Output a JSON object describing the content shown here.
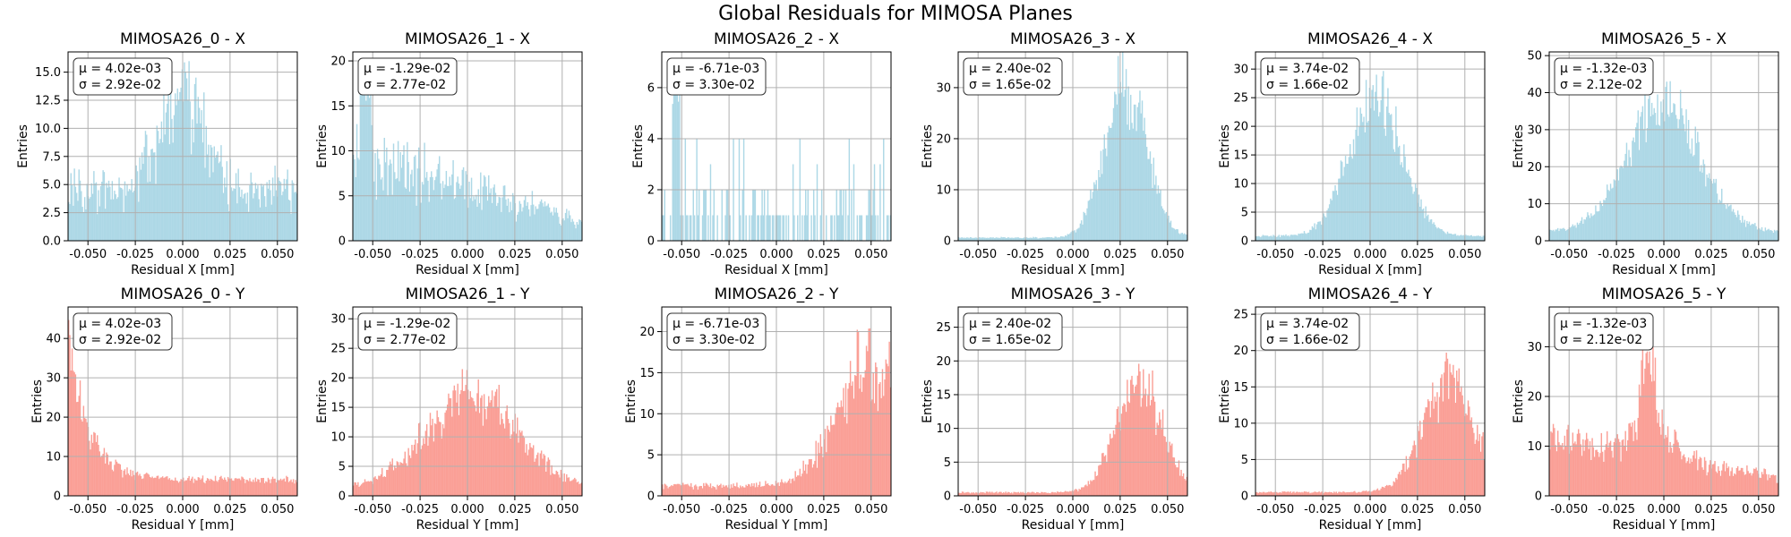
{
  "figure_title": "Global Residuals for MIMOSA Planes",
  "colors": {
    "x_bars": "#add8e6",
    "y_bars": "#fa9f96",
    "grid": "#b0b0b0",
    "axes": "#000000"
  },
  "chart_data": [
    {
      "type": "bar",
      "title": "MIMOSA26_0 - X",
      "xlabel": "Residual X [mm]",
      "ylabel": "Entries",
      "xlim": [
        -0.0605,
        0.0605
      ],
      "ylim": [
        0,
        16.8
      ],
      "xticks": [
        "-0.050",
        "-0.025",
        "0.000",
        "0.025",
        "0.050"
      ],
      "yticks": [
        "0.0",
        "2.5",
        "5.0",
        "7.5",
        "10.0",
        "12.5",
        "15.0"
      ],
      "ytick_values": [
        0,
        2.5,
        5,
        7.5,
        10,
        12.5,
        15
      ],
      "stat_mu": "μ = 4.02e-03",
      "stat_sigma": "σ = 2.92e-02",
      "series_color": "x",
      "profile": {
        "shape": "flat",
        "level": 4.5,
        "peak": 16,
        "peak_at": 0.0,
        "peak_width": 0.004,
        "noise": 0.55
      }
    },
    {
      "type": "bar",
      "title": "MIMOSA26_1 - X",
      "xlabel": "Residual X [mm]",
      "ylabel": "Entries",
      "xlim": [
        -0.0605,
        0.0605
      ],
      "ylim": [
        0,
        21
      ],
      "xticks": [
        "-0.050",
        "-0.025",
        "0.000",
        "0.025",
        "0.050"
      ],
      "yticks": [
        "0",
        "5",
        "10",
        "15",
        "20"
      ],
      "ytick_values": [
        0,
        5,
        10,
        15,
        20
      ],
      "stat_mu": "μ = -1.29e-02",
      "stat_sigma": "σ = 2.77e-02",
      "series_color": "x",
      "profile": {
        "shape": "ramp",
        "start": 10,
        "end": 2,
        "peak": 20,
        "peak_at": -0.054,
        "peak_width": 0.003,
        "noise": 0.55
      }
    },
    {
      "type": "bar",
      "title": "MIMOSA26_2 - X",
      "xlabel": "Residual X [mm]",
      "ylabel": "Entries",
      "xlim": [
        -0.0605,
        0.0605
      ],
      "ylim": [
        0,
        7.4
      ],
      "xticks": [
        "-0.050",
        "-0.025",
        "0.000",
        "0.025",
        "0.050"
      ],
      "yticks": [
        "0",
        "2",
        "4",
        "6"
      ],
      "ytick_values": [
        0,
        2,
        4,
        6
      ],
      "stat_mu": "μ = -6.71e-03",
      "stat_sigma": "σ = 3.30e-02",
      "series_color": "x",
      "profile": {
        "shape": "sparse",
        "level": 1.2,
        "peak": 7,
        "peak_at": -0.053,
        "peak_width": 0.002,
        "noise": 1.0
      }
    },
    {
      "type": "bar",
      "title": "MIMOSA26_3 - X",
      "xlabel": "Residual X [mm]",
      "ylabel": "Entries",
      "xlim": [
        -0.0605,
        0.0605
      ],
      "ylim": [
        0,
        37
      ],
      "xticks": [
        "-0.050",
        "-0.025",
        "0.000",
        "0.025",
        "0.050"
      ],
      "yticks": [
        "0",
        "10",
        "20",
        "30"
      ],
      "ytick_values": [
        0,
        10,
        20,
        30
      ],
      "stat_mu": "μ = 2.40e-02",
      "stat_sigma": "σ = 1.65e-02",
      "series_color": "x",
      "profile": {
        "shape": "gauss",
        "center": 0.028,
        "sigma": 0.011,
        "amp": 30,
        "base": 0.6,
        "noise": 0.3
      }
    },
    {
      "type": "bar",
      "title": "MIMOSA26_4 - X",
      "xlabel": "Residual X [mm]",
      "ylabel": "Entries",
      "xlim": [
        -0.0605,
        0.0605
      ],
      "ylim": [
        0,
        33
      ],
      "xticks": [
        "-0.050",
        "-0.025",
        "0.000",
        "0.025",
        "0.050"
      ],
      "yticks": [
        "0",
        "5",
        "10",
        "15",
        "20",
        "25",
        "30"
      ],
      "ytick_values": [
        0,
        5,
        10,
        15,
        20,
        25,
        30
      ],
      "stat_mu": "μ = 3.74e-02",
      "stat_sigma": "σ = 1.66e-02",
      "series_color": "x",
      "profile": {
        "shape": "gauss",
        "center": 0.003,
        "sigma": 0.014,
        "amp": 24,
        "base": 0.8,
        "noise": 0.3
      }
    },
    {
      "type": "bar",
      "title": "MIMOSA26_5 - X",
      "xlabel": "Residual X [mm]",
      "ylabel": "Entries",
      "xlim": [
        -0.0605,
        0.0605
      ],
      "ylim": [
        0,
        51
      ],
      "xticks": [
        "-0.050",
        "-0.025",
        "0.000",
        "0.025",
        "0.050"
      ],
      "yticks": [
        "0",
        "10",
        "20",
        "30",
        "40",
        "50"
      ],
      "ytick_values": [
        0,
        10,
        20,
        30,
        40,
        50
      ],
      "stat_mu": "μ = -1.32e-03",
      "stat_sigma": "σ = 2.12e-02",
      "series_color": "x",
      "profile": {
        "shape": "gauss",
        "center": 0.0,
        "sigma": 0.019,
        "amp": 34,
        "base": 2.5,
        "noise": 0.3
      }
    },
    {
      "type": "bar",
      "title": "MIMOSA26_0 - Y",
      "xlabel": "Residual Y [mm]",
      "ylabel": "Entries",
      "xlim": [
        -0.0605,
        0.0605
      ],
      "ylim": [
        0,
        48
      ],
      "xticks": [
        "-0.050",
        "-0.025",
        "0.000",
        "0.025",
        "0.050"
      ],
      "yticks": [
        "0",
        "10",
        "20",
        "30",
        "40"
      ],
      "ytick_values": [
        0,
        10,
        20,
        30,
        40
      ],
      "stat_mu": "μ = 4.02e-03",
      "stat_sigma": "σ = 2.92e-02",
      "series_color": "y",
      "profile": {
        "shape": "edge",
        "start": 38,
        "decay": 0.011,
        "floor": 4,
        "noise": 0.3
      }
    },
    {
      "type": "bar",
      "title": "MIMOSA26_1 - Y",
      "xlabel": "Residual Y [mm]",
      "ylabel": "Entries",
      "xlim": [
        -0.0605,
        0.0605
      ],
      "ylim": [
        0,
        32
      ],
      "xticks": [
        "-0.050",
        "-0.025",
        "0.000",
        "0.025",
        "0.050"
      ],
      "yticks": [
        "0",
        "5",
        "10",
        "15",
        "20",
        "25",
        "30"
      ],
      "ytick_values": [
        0,
        5,
        10,
        15,
        20,
        25,
        30
      ],
      "stat_mu": "μ = -1.29e-02",
      "stat_sigma": "σ = 2.77e-02",
      "series_color": "y",
      "profile": {
        "shape": "gauss",
        "center": 0.002,
        "sigma": 0.025,
        "amp": 16,
        "base": 1.0,
        "noise": 0.35
      }
    },
    {
      "type": "bar",
      "title": "MIMOSA26_2 - Y",
      "xlabel": "Residual Y [mm]",
      "ylabel": "Entries",
      "xlim": [
        -0.0605,
        0.0605
      ],
      "ylim": [
        0,
        23
      ],
      "xticks": [
        "-0.050",
        "-0.025",
        "0.000",
        "0.025",
        "0.050"
      ],
      "yticks": [
        "0",
        "5",
        "10",
        "15",
        "20"
      ],
      "ytick_values": [
        0,
        5,
        10,
        15,
        20
      ],
      "stat_mu": "μ = -6.71e-03",
      "stat_sigma": "σ = 3.30e-02",
      "series_color": "y",
      "profile": {
        "shape": "gauss",
        "center": 0.05,
        "sigma": 0.018,
        "amp": 15,
        "base": 1.2,
        "noise": 0.4
      }
    },
    {
      "type": "bar",
      "title": "MIMOSA26_3 - Y",
      "xlabel": "Residual Y [mm]",
      "ylabel": "Entries",
      "xlim": [
        -0.0605,
        0.0605
      ],
      "ylim": [
        0,
        28
      ],
      "xticks": [
        "-0.050",
        "-0.025",
        "0.000",
        "0.025",
        "0.050"
      ],
      "yticks": [
        "0",
        "5",
        "10",
        "15",
        "20",
        "25"
      ],
      "ytick_values": [
        0,
        5,
        10,
        15,
        20,
        25
      ],
      "stat_mu": "μ = 2.40e-02",
      "stat_sigma": "σ = 1.65e-02",
      "series_color": "y",
      "profile": {
        "shape": "gauss",
        "center": 0.035,
        "sigma": 0.012,
        "amp": 17,
        "base": 0.5,
        "noise": 0.35
      }
    },
    {
      "type": "bar",
      "title": "MIMOSA26_4 - Y",
      "xlabel": "Residual Y [mm]",
      "ylabel": "Entries",
      "xlim": [
        -0.0605,
        0.0605
      ],
      "ylim": [
        0,
        26
      ],
      "xticks": [
        "-0.050",
        "-0.025",
        "0.000",
        "0.025",
        "0.050"
      ],
      "yticks": [
        "0",
        "5",
        "10",
        "15",
        "20",
        "25"
      ],
      "ytick_values": [
        0,
        5,
        10,
        15,
        20,
        25
      ],
      "stat_mu": "μ = 3.74e-02",
      "stat_sigma": "σ = 1.66e-02",
      "series_color": "y",
      "profile": {
        "shape": "gauss",
        "center": 0.042,
        "sigma": 0.014,
        "amp": 15,
        "base": 0.5,
        "noise": 0.35
      }
    },
    {
      "type": "bar",
      "title": "MIMOSA26_5 - Y",
      "xlabel": "Residual Y [mm]",
      "ylabel": "Entries",
      "xlim": [
        -0.0605,
        0.0605
      ],
      "ylim": [
        0,
        38
      ],
      "xticks": [
        "-0.050",
        "-0.025",
        "0.000",
        "0.025",
        "0.050"
      ],
      "yticks": [
        "0",
        "10",
        "20",
        "30"
      ],
      "ytick_values": [
        0,
        10,
        20,
        30
      ],
      "stat_mu": "μ = -1.32e-03",
      "stat_sigma": "σ = 2.12e-02",
      "series_color": "y",
      "profile": {
        "shape": "twopeak",
        "level": 12,
        "end": 4,
        "peak": 30,
        "peak_at": -0.008,
        "peak_width": 0.004,
        "noise": 0.4
      }
    }
  ]
}
